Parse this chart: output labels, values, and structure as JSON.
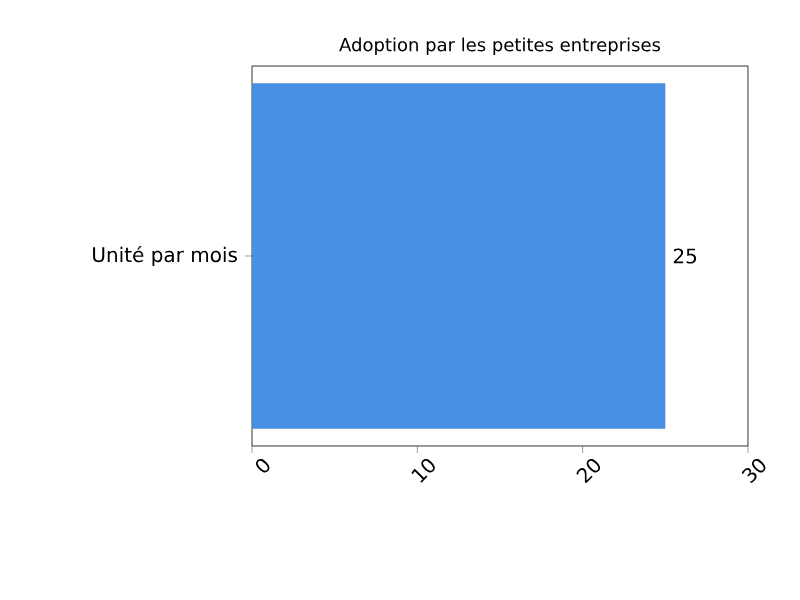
{
  "chart_data": {
    "type": "bar",
    "orientation": "horizontal",
    "title": "Adoption par les petites entreprises",
    "categories": [
      "Unité par mois"
    ],
    "values": [
      25
    ],
    "color": "#4a90e2",
    "xlim": [
      0,
      30
    ],
    "xticks": [
      0,
      10,
      20,
      30
    ],
    "data_labels": true
  }
}
